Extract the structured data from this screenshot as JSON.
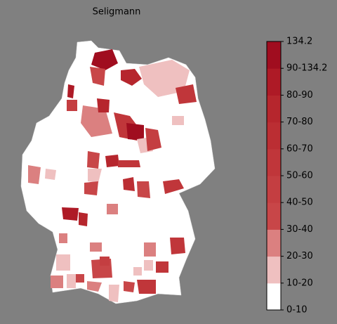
{
  "title": "Seligmann",
  "legend": {
    "labels": [
      "0-10",
      "10-20",
      "20-30",
      "30-40",
      "40-50",
      "50-60",
      "60-70",
      "70-80",
      "80-90",
      "90-134.2",
      "134.2"
    ],
    "colors": [
      "#ffffff",
      "#efc0c0",
      "#db8080",
      "#c84648",
      "#c43e41",
      "#c0363a",
      "#bb2e33",
      "#b6262d",
      "#ae1a26",
      "#a00d1f"
    ]
  }
}
